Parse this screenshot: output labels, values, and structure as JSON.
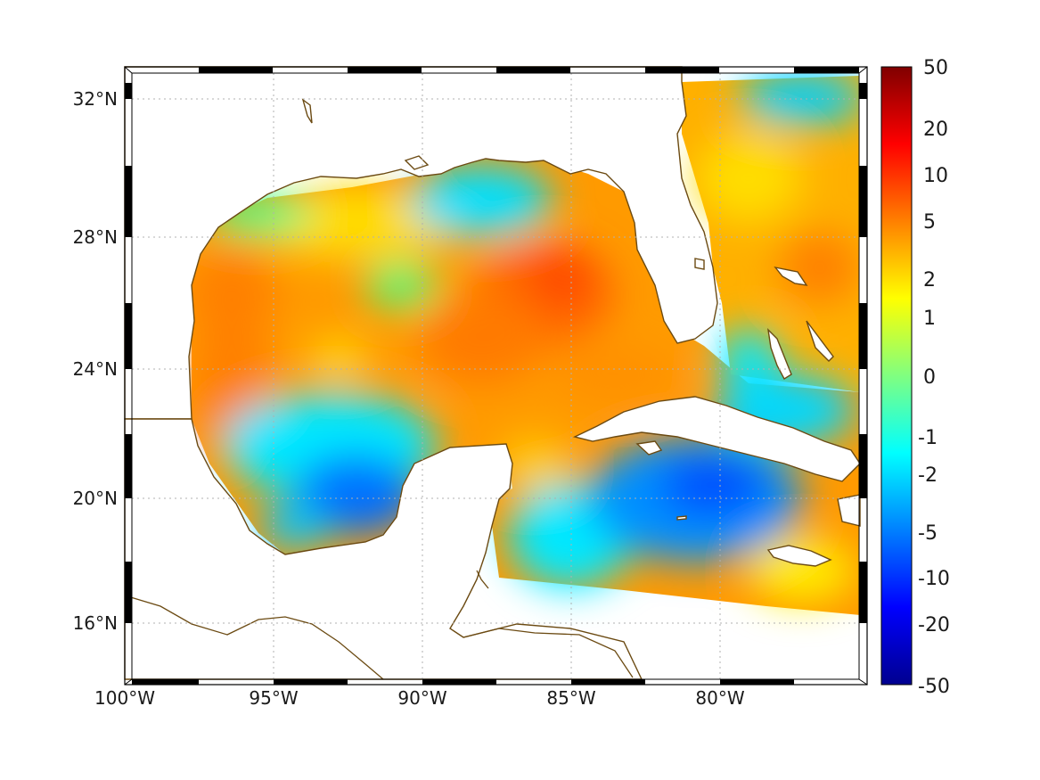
{
  "map": {
    "lon_ticks": [
      "100°W",
      "95°W",
      "90°W",
      "85°W",
      "80°W"
    ],
    "lon_values": [
      -100,
      -95,
      -90,
      -85,
      -80
    ],
    "lat_ticks": [
      "32°N",
      "28°N",
      "24°N",
      "20°N",
      "16°N"
    ],
    "lat_values": [
      32,
      28,
      24,
      20,
      16
    ],
    "lon_range": [
      -100,
      -75
    ],
    "lat_range": [
      14.3,
      32.9
    ],
    "grid": true,
    "grid_style": "dotted",
    "coastline_color": "#6b4a12",
    "frame_style": "alternating black/white border"
  },
  "colorbar": {
    "labels": [
      "50",
      "20",
      "10",
      "5",
      "2",
      "1",
      "0",
      "-1",
      "-2",
      "-5",
      "-10",
      "-20",
      "-50"
    ],
    "colormap": "jet",
    "placement": "right"
  },
  "colors": {
    "jet_stops": [
      "#00008f",
      "#0000ff",
      "#0080ff",
      "#00ffff",
      "#80ff80",
      "#ffff00",
      "#ff8000",
      "#ff0000",
      "#800000"
    ]
  }
}
